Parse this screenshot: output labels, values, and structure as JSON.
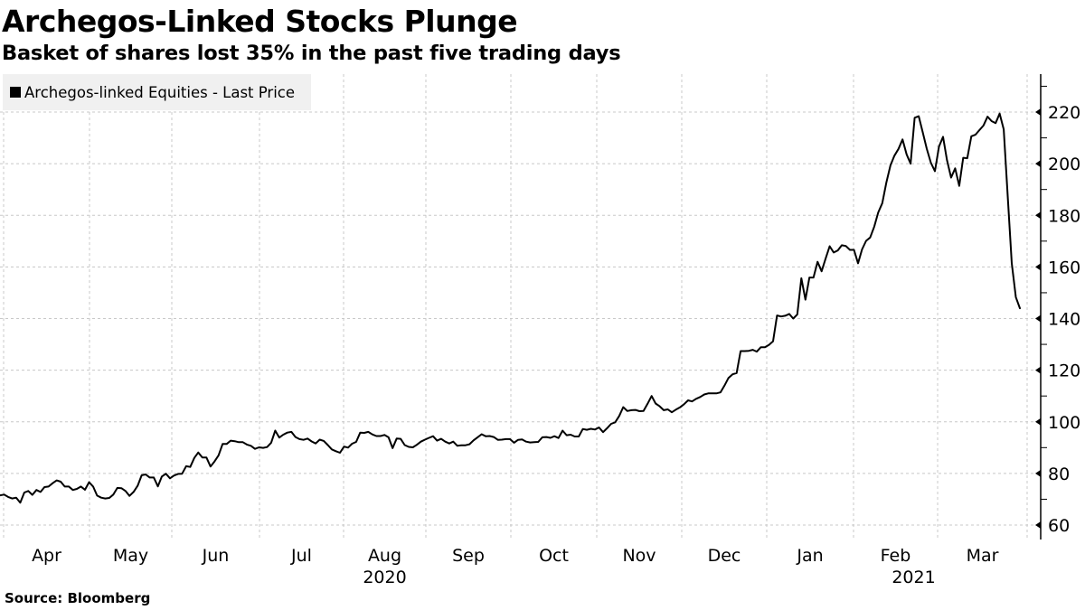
{
  "header": {
    "title": "Archegos-Linked Stocks Plunge",
    "subtitle": "Basket of shares lost 35% in the past five trading days"
  },
  "footer": {
    "source": "Source: Bloomberg"
  },
  "colors": {
    "line": "#000000",
    "grid": "#c8c8c8",
    "legend_bg": "#f0f0f0",
    "axis": "#000000"
  },
  "chart_data": {
    "type": "line",
    "title": "Archegos-Linked Stocks Plunge",
    "subtitle": "Basket of shares lost 35% in the past five trading days",
    "xlabel": "",
    "ylabel": "",
    "ylim": [
      55,
      233
    ],
    "y_ticks": [
      60,
      80,
      100,
      120,
      140,
      160,
      180,
      200,
      220
    ],
    "y_axis_position": "right",
    "grid": true,
    "legend": {
      "position": "top-left",
      "entries": [
        "Archegos-linked Equities - Last Price"
      ]
    },
    "x_ticks": [
      "Apr",
      "May",
      "Jun",
      "Jul",
      "Aug",
      "Sep",
      "Oct",
      "Nov",
      "Dec",
      "Jan",
      "Feb",
      "Mar"
    ],
    "x_year_labels": [
      {
        "label": "2020",
        "under": "Aug"
      },
      {
        "label": "2021",
        "under": "Feb"
      }
    ],
    "x_range": [
      "2020-03-27",
      "2021-03-31"
    ],
    "series": [
      {
        "name": "Archegos-linked Equities - Last Price",
        "frequency": "trading-day",
        "values": [
          71.5,
          71.8,
          70.9,
          70.3,
          70.6,
          68.7,
          72.6,
          73.2,
          71.7,
          73.6,
          72.8,
          74.7,
          74.9,
          76.2,
          77.3,
          76.8,
          74.9,
          74.9,
          73.6,
          74.0,
          74.9,
          73.7,
          76.6,
          74.9,
          71.4,
          70.6,
          70.3,
          70.5,
          71.8,
          74.4,
          74.3,
          73.2,
          71.3,
          72.8,
          75.2,
          79.3,
          79.6,
          78.4,
          78.4,
          75.0,
          78.8,
          79.9,
          78.1,
          79.2,
          79.8,
          79.9,
          82.8,
          82.5,
          86.0,
          88.1,
          86.2,
          86.2,
          82.7,
          84.6,
          87.0,
          91.4,
          91.4,
          92.7,
          92.5,
          92.1,
          92.1,
          91.2,
          90.7,
          89.5,
          90.1,
          89.9,
          90.2,
          91.9,
          96.6,
          93.9,
          95.0,
          95.8,
          96.1,
          94.1,
          93.3,
          93.0,
          93.5,
          92.4,
          91.6,
          93.1,
          92.6,
          91.0,
          89.3,
          88.6,
          88.0,
          90.4,
          90.0,
          91.5,
          92.2,
          95.8,
          95.7,
          96.1,
          95.1,
          94.5,
          94.5,
          94.9,
          94.0,
          89.8,
          93.5,
          93.4,
          91.0,
          90.3,
          90.1,
          91.1,
          92.3,
          93.1,
          93.8,
          94.4,
          92.7,
          93.4,
          92.3,
          91.6,
          92.3,
          90.7,
          90.9,
          90.9,
          91.3,
          92.8,
          94.0,
          95.2,
          94.4,
          94.5,
          94.1,
          93.0,
          93.1,
          93.3,
          93.3,
          91.9,
          93.0,
          93.2,
          92.3,
          92.0,
          92.1,
          92.2,
          94.0,
          94.1,
          93.8,
          94.4,
          93.7,
          96.6,
          94.8,
          95.0,
          94.3,
          94.3,
          97.2,
          96.9,
          97.3,
          97.0,
          97.8,
          96.0,
          97.5,
          99.2,
          99.8,
          102.3,
          105.7,
          104.2,
          104.5,
          104.6,
          104.1,
          104.2,
          107.0,
          110.0,
          107.1,
          106.0,
          104.5,
          104.8,
          103.7,
          104.7,
          105.6,
          106.8,
          108.3,
          107.9,
          108.9,
          109.6,
          110.6,
          111.0,
          111.0,
          111.0,
          111.4,
          114.0,
          117.0,
          118.4,
          118.9,
          127.4,
          127.4,
          127.5,
          127.9,
          127.2,
          128.9,
          128.9,
          129.8,
          131.2,
          141.2,
          140.8,
          141.1,
          141.8,
          140.0,
          141.6,
          155.6,
          147.3,
          155.9,
          155.9,
          162.0,
          158.3,
          163.2,
          168.0,
          165.6,
          166.4,
          168.4,
          168.1,
          166.6,
          166.6,
          161.4,
          166.8,
          170.1,
          171.4,
          175.6,
          181.1,
          184.7,
          192.7,
          199.3,
          203.1,
          205.7,
          209.4,
          203.6,
          200.0,
          217.8,
          218.4,
          212.1,
          205.8,
          200.4,
          197.1,
          206.6,
          210.4,
          201.3,
          194.6,
          198.2,
          191.4,
          202.3,
          202.1,
          210.6,
          211.2,
          213.0,
          214.8,
          218.2,
          216.5,
          215.7,
          219.4,
          213.3,
          187.0,
          161.4,
          148.3,
          144.0
        ]
      }
    ]
  }
}
